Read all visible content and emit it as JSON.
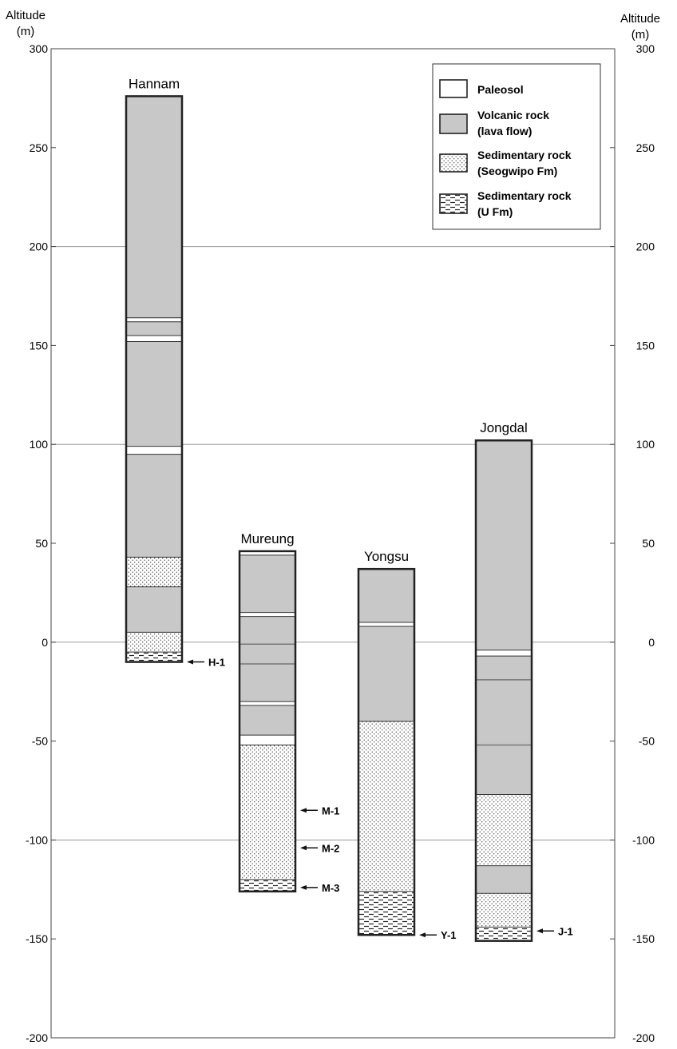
{
  "axis": {
    "title_left": [
      "Altitude",
      "(m)"
    ],
    "title_right": [
      "Altitude",
      "(m)"
    ],
    "ylim": [
      -200,
      300
    ],
    "ticks": [
      300,
      250,
      200,
      150,
      100,
      50,
      0,
      -50,
      -100,
      -150,
      -200
    ],
    "gridlines": [
      200,
      100,
      0,
      -100
    ]
  },
  "legend": {
    "items": [
      {
        "key": "paleosol",
        "lines": [
          "Paleosol"
        ]
      },
      {
        "key": "volcanic",
        "lines": [
          "Volcanic rock",
          "(lava flow)"
        ]
      },
      {
        "key": "seogwipo",
        "lines": [
          "Sedimentary rock",
          "(Seogwipo Fm)"
        ]
      },
      {
        "key": "ufm",
        "lines": [
          "Sedimentary rock",
          "(U Fm)"
        ]
      }
    ]
  },
  "colors": {
    "volcanic": "#c8c8c8",
    "paleosol": "#ffffff",
    "seogwipo_bg": "#ffffff",
    "dots": "#333333",
    "outline": "#222222",
    "grid": "#999999"
  },
  "chart_data": {
    "type": "stratigraphic-columns",
    "columns": [
      {
        "name": "Hannam",
        "top": 276,
        "bottom": -10,
        "layers": [
          {
            "type": "volcanic",
            "top": 276,
            "bottom": 164
          },
          {
            "type": "paleosol",
            "top": 164,
            "bottom": 162
          },
          {
            "type": "volcanic",
            "top": 162,
            "bottom": 155
          },
          {
            "type": "paleosol",
            "top": 155,
            "bottom": 152
          },
          {
            "type": "volcanic",
            "top": 152,
            "bottom": 99
          },
          {
            "type": "paleosol",
            "top": 99,
            "bottom": 95
          },
          {
            "type": "volcanic",
            "top": 95,
            "bottom": 43
          },
          {
            "type": "seogwipo",
            "top": 43,
            "bottom": 28
          },
          {
            "type": "volcanic",
            "top": 28,
            "bottom": 5
          },
          {
            "type": "seogwipo",
            "top": 5,
            "bottom": -5
          },
          {
            "type": "ufm",
            "top": -5,
            "bottom": -10
          }
        ],
        "samples": [
          {
            "label": "H-1",
            "alt": -10
          }
        ]
      },
      {
        "name": "Mureung",
        "top": 46,
        "bottom": -126,
        "layers": [
          {
            "type": "paleosol",
            "top": 46,
            "bottom": 44
          },
          {
            "type": "volcanic",
            "top": 44,
            "bottom": 15
          },
          {
            "type": "paleosol",
            "top": 15,
            "bottom": 13
          },
          {
            "type": "volcanic",
            "top": 13,
            "bottom": -30
          },
          {
            "type": "paleosol",
            "top": -30,
            "bottom": -32
          },
          {
            "type": "volcanic",
            "top": -32,
            "bottom": -47
          },
          {
            "type": "paleosol",
            "top": -47,
            "bottom": -52
          },
          {
            "type": "seogwipo",
            "top": -52,
            "bottom": -120
          },
          {
            "type": "ufm",
            "top": -120,
            "bottom": -126
          }
        ],
        "inner_lines": [
          -1,
          -11
        ],
        "samples": [
          {
            "label": "M-1",
            "alt": -85
          },
          {
            "label": "M-2",
            "alt": -104
          },
          {
            "label": "M-3",
            "alt": -124
          }
        ]
      },
      {
        "name": "Yongsu",
        "top": 37,
        "bottom": -148,
        "layers": [
          {
            "type": "volcanic",
            "top": 37,
            "bottom": 10
          },
          {
            "type": "paleosol",
            "top": 10,
            "bottom": 8
          },
          {
            "type": "volcanic",
            "top": 8,
            "bottom": -40
          },
          {
            "type": "seogwipo",
            "top": -40,
            "bottom": -126
          },
          {
            "type": "ufm",
            "top": -126,
            "bottom": -148
          }
        ],
        "samples": [
          {
            "label": "Y-1",
            "alt": -148
          }
        ]
      },
      {
        "name": "Jongdal",
        "top": 102,
        "bottom": -151,
        "layers": [
          {
            "type": "volcanic",
            "top": 102,
            "bottom": -4
          },
          {
            "type": "paleosol",
            "top": -4,
            "bottom": -7
          },
          {
            "type": "volcanic",
            "top": -7,
            "bottom": -77
          },
          {
            "type": "seogwipo",
            "top": -77,
            "bottom": -113
          },
          {
            "type": "volcanic",
            "top": -113,
            "bottom": -127
          },
          {
            "type": "seogwipo",
            "top": -127,
            "bottom": -144
          },
          {
            "type": "ufm",
            "top": -144,
            "bottom": -151
          }
        ],
        "inner_lines": [
          -19,
          -52
        ],
        "samples": [
          {
            "label": "J-1",
            "alt": -146
          }
        ]
      }
    ]
  }
}
